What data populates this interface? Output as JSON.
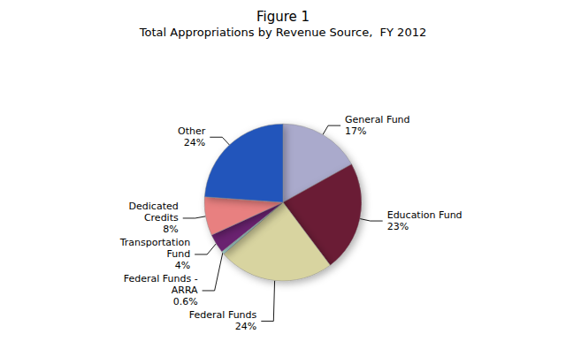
{
  "chart_data": {
    "type": "pie",
    "title": "Figure 1",
    "subtitle": "Total Appropriations by Revenue Source,  FY 2012",
    "categories": [
      "General Fund",
      "Education Fund",
      "Federal Funds",
      "Federal Funds -\nARRA",
      "Transportation\nFund",
      "Dedicated\nCredits",
      "Other"
    ],
    "values": [
      17,
      23,
      24,
      0.6,
      4,
      8,
      24
    ],
    "value_labels": [
      "17%",
      "23%",
      "24%",
      "0.6%",
      "4%",
      "8%",
      "24%"
    ],
    "colors": [
      "#aaaacc",
      "#6b1a35",
      "#d8d4a0",
      "#a8d8d4",
      "#6b2070",
      "#e88080",
      "#2255bb"
    ]
  }
}
